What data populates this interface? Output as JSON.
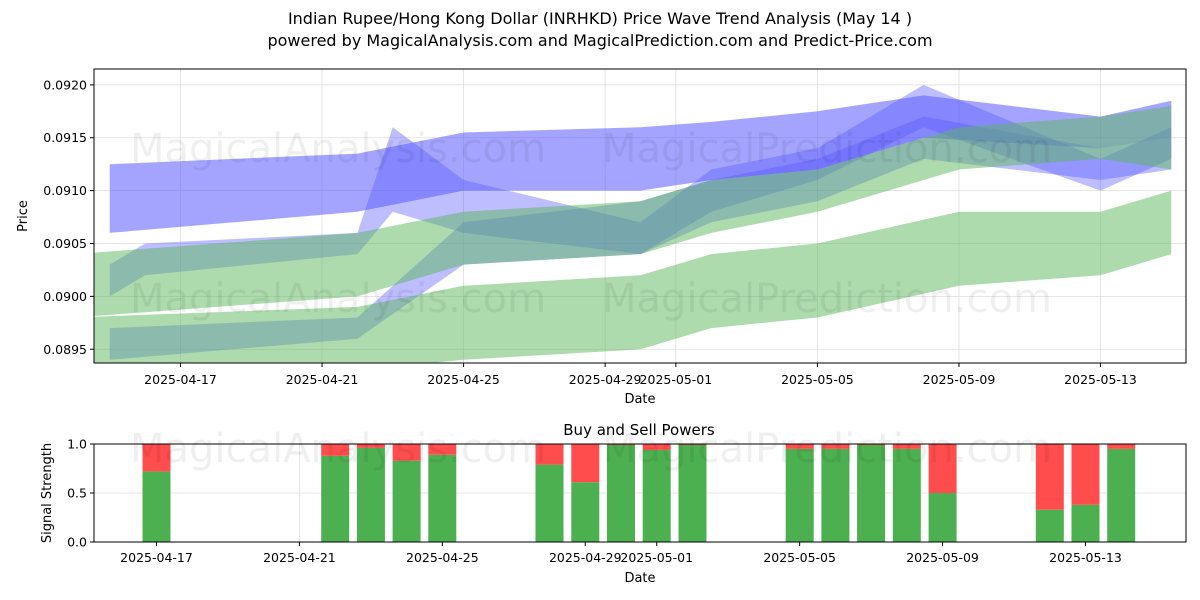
{
  "title": {
    "line1": "Indian Rupee/Hong Kong Dollar (INRHKD) Price Wave Trend Analysis (May 14 )",
    "line2": "powered by MagicalAnalysis.com and MagicalPrediction.com and Predict-Price.com"
  },
  "watermarks": {
    "left": "MagicalAnalysis.com",
    "right": "MagicalPrediction.com"
  },
  "colors": {
    "blue_band": "#5a5aff",
    "green_band": "#5cb85c",
    "buy": "#4caf50",
    "sell": "#ff4c4c"
  },
  "chart_data": [
    {
      "type": "area",
      "xlabel": "Date",
      "ylabel": "Price",
      "ylim": [
        0.08937,
        0.09215
      ],
      "xlim": [
        "2025-04-14",
        "2025-05-15"
      ],
      "x_ticks": [
        "2025-04-17",
        "2025-04-21",
        "2025-04-25",
        "2025-04-29",
        "2025-05-01",
        "2025-05-05",
        "2025-05-09",
        "2025-05-13"
      ],
      "y_ticks": [
        "0.0895",
        "0.0900",
        "0.0905",
        "0.0910",
        "0.0915",
        "0.0920"
      ],
      "grid": true,
      "series": [
        {
          "color": "blue",
          "x": [
            "2025-04-15",
            "2025-04-22",
            "2025-04-25",
            "2025-04-30",
            "2025-05-02",
            "2025-05-05",
            "2025-05-08",
            "2025-05-13",
            "2025-05-15"
          ],
          "low": [
            0.0906,
            0.0908,
            0.091,
            0.091,
            0.0911,
            0.0912,
            0.0915,
            0.0914,
            0.0915
          ],
          "high": [
            0.09125,
            0.09135,
            0.09155,
            0.0916,
            0.09165,
            0.09175,
            0.0919,
            0.0917,
            0.09185
          ]
        },
        {
          "color": "blue",
          "x": [
            "2025-04-15",
            "2025-04-16",
            "2025-04-22",
            "2025-04-23",
            "2025-04-25",
            "2025-04-30",
            "2025-05-02",
            "2025-05-05",
            "2025-05-08",
            "2025-05-13",
            "2025-05-15"
          ],
          "low": [
            0.09,
            0.0902,
            0.0904,
            0.0908,
            0.0906,
            0.0904,
            0.0908,
            0.0911,
            0.0916,
            0.091,
            0.0913
          ],
          "high": [
            0.0903,
            0.0905,
            0.0906,
            0.0916,
            0.0911,
            0.0907,
            0.0912,
            0.0914,
            0.092,
            0.0913,
            0.0916
          ]
        },
        {
          "color": "blue",
          "x": [
            "2025-04-15",
            "2025-04-22",
            "2025-04-25",
            "2025-04-30",
            "2025-05-02",
            "2025-05-05",
            "2025-05-08",
            "2025-05-13",
            "2025-05-15"
          ],
          "low": [
            0.0894,
            0.0896,
            0.0903,
            0.0904,
            0.0907,
            0.0909,
            0.0913,
            0.0911,
            0.0912
          ],
          "high": [
            0.0897,
            0.0898,
            0.0907,
            0.0909,
            0.0911,
            0.0913,
            0.0917,
            0.0914,
            0.0915
          ]
        },
        {
          "color": "green",
          "x": [
            "2025-04-14",
            "2025-04-22",
            "2025-04-25",
            "2025-04-30",
            "2025-05-02",
            "2025-05-05",
            "2025-05-09",
            "2025-05-13",
            "2025-05-15"
          ],
          "low": [
            0.0898,
            0.09,
            0.0903,
            0.0904,
            0.0906,
            0.0908,
            0.0912,
            0.0913,
            0.0912
          ],
          "high": [
            0.0904,
            0.0906,
            0.0908,
            0.0909,
            0.0911,
            0.0912,
            0.0916,
            0.0917,
            0.0918
          ]
        },
        {
          "color": "green",
          "x": [
            "2025-04-14",
            "2025-04-22",
            "2025-04-25",
            "2025-04-30",
            "2025-05-02",
            "2025-05-05",
            "2025-05-09",
            "2025-05-13",
            "2025-05-15"
          ],
          "low": [
            0.08925,
            0.0893,
            0.0894,
            0.0895,
            0.0897,
            0.0898,
            0.0901,
            0.0902,
            0.0904
          ],
          "high": [
            0.0898,
            0.0899,
            0.0901,
            0.0902,
            0.0904,
            0.0905,
            0.0908,
            0.0908,
            0.091
          ]
        }
      ]
    },
    {
      "type": "bar",
      "title": "Buy and Sell Powers",
      "xlabel": "Date",
      "ylabel": "Signal Strength",
      "ylim": [
        0,
        1
      ],
      "y_ticks": [
        "0.0",
        "0.5",
        "1.0"
      ],
      "x_ticks": [
        "2025-04-17",
        "2025-04-21",
        "2025-04-25",
        "2025-04-29",
        "2025-05-01",
        "2025-05-05",
        "2025-05-09",
        "2025-05-13"
      ],
      "categories": [
        "2025-04-17",
        "2025-04-22",
        "2025-04-23",
        "2025-04-24",
        "2025-04-25",
        "2025-04-28",
        "2025-04-29",
        "2025-04-30",
        "2025-05-01",
        "2025-05-02",
        "2025-05-05",
        "2025-05-06",
        "2025-05-07",
        "2025-05-08",
        "2025-05-09",
        "2025-05-12",
        "2025-05-13",
        "2025-05-14"
      ],
      "series": [
        {
          "name": "Buy",
          "values": [
            0.72,
            0.88,
            0.96,
            0.83,
            0.89,
            0.79,
            0.61,
            0.99,
            0.94,
            0.99,
            0.95,
            0.95,
            0.99,
            0.95,
            0.5,
            0.33,
            0.38,
            0.95
          ]
        },
        {
          "name": "Sell",
          "values": [
            0.28,
            0.12,
            0.04,
            0.17,
            0.11,
            0.21,
            0.39,
            0.01,
            0.06,
            0.01,
            0.05,
            0.05,
            0.01,
            0.05,
            0.5,
            0.67,
            0.62,
            0.05
          ]
        }
      ]
    }
  ]
}
